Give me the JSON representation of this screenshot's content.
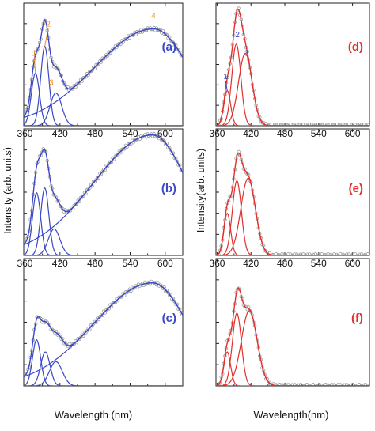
{
  "figure": {
    "x_axis_label": "Wavelength (nm)",
    "x_axis_label_right": "Wavelength(nm)",
    "y_axis_label_left": "Intensity (arb. units)",
    "y_axis_label_right": "Intensity(arb. units)",
    "x_tick_labels": [
      "360",
      "420",
      "480",
      "540",
      "600"
    ],
    "colors": {
      "blue": "#3a48c6",
      "red": "#e0302c",
      "orange": "#f08a24",
      "data_grey": "#9a9a9a"
    },
    "data_symbol": "open-circle"
  },
  "chart_data": [
    {
      "panel": "(a)",
      "type": "line",
      "xlim": [
        358,
        630
      ],
      "ylim": [
        0,
        1.05
      ],
      "series": [
        {
          "name": "1",
          "center": 378,
          "amplitude": 0.45,
          "width": 7
        },
        {
          "name": "2",
          "center": 394,
          "amplitude": 0.68,
          "width": 7
        },
        {
          "name": "3",
          "center": 413,
          "amplitude": 0.28,
          "width": 10
        },
        {
          "name": "4",
          "type": "broad_band",
          "center": 580,
          "amplitude": 0.83
        }
      ],
      "peak_labels": [
        "1",
        "2",
        "3",
        "4"
      ]
    },
    {
      "panel": "(b)",
      "type": "line",
      "xlim": [
        358,
        630
      ],
      "ylim": [
        0,
        1.05
      ],
      "series": [
        {
          "center": 380,
          "amplitude": 0.52,
          "width": 7
        },
        {
          "center": 394,
          "amplitude": 0.56,
          "width": 7
        },
        {
          "center": 410,
          "amplitude": 0.22,
          "width": 10
        },
        {
          "type": "broad_band",
          "center": 578,
          "amplitude": 1.0
        }
      ]
    },
    {
      "panel": "(c)",
      "type": "line",
      "xlim": [
        358,
        630
      ],
      "ylim": [
        0,
        1.05
      ],
      "series": [
        {
          "center": 380,
          "amplitude": 0.38,
          "width": 7
        },
        {
          "center": 395,
          "amplitude": 0.28,
          "width": 8
        },
        {
          "center": 413,
          "amplitude": 0.2,
          "width": 11
        },
        {
          "type": "broad_band",
          "center": 578,
          "amplitude": 0.85
        }
      ]
    },
    {
      "panel": "(d)",
      "type": "line",
      "xlim": [
        358,
        630
      ],
      "ylim": [
        0,
        1.05
      ],
      "series": [
        {
          "name": "1",
          "center": 378,
          "amplitude": 0.3,
          "width": 6
        },
        {
          "name": "2",
          "center": 394,
          "amplitude": 0.7,
          "width": 8
        },
        {
          "name": "3",
          "center": 410,
          "amplitude": 0.62,
          "width": 12
        }
      ],
      "peak_labels": [
        "1",
        "2",
        "3"
      ]
    },
    {
      "panel": "(e)",
      "type": "line",
      "xlim": [
        358,
        630
      ],
      "ylim": [
        0,
        1.05
      ],
      "series": [
        {
          "center": 378,
          "amplitude": 0.35,
          "width": 6
        },
        {
          "center": 395,
          "amplitude": 0.62,
          "width": 8
        },
        {
          "center": 415,
          "amplitude": 0.64,
          "width": 13
        }
      ]
    },
    {
      "panel": "(f)",
      "type": "line",
      "xlim": [
        358,
        630
      ],
      "ylim": [
        0,
        1.05
      ],
      "series": [
        {
          "center": 378,
          "amplitude": 0.28,
          "width": 6
        },
        {
          "center": 395,
          "amplitude": 0.6,
          "width": 8
        },
        {
          "center": 417,
          "amplitude": 0.62,
          "width": 14
        }
      ]
    }
  ]
}
